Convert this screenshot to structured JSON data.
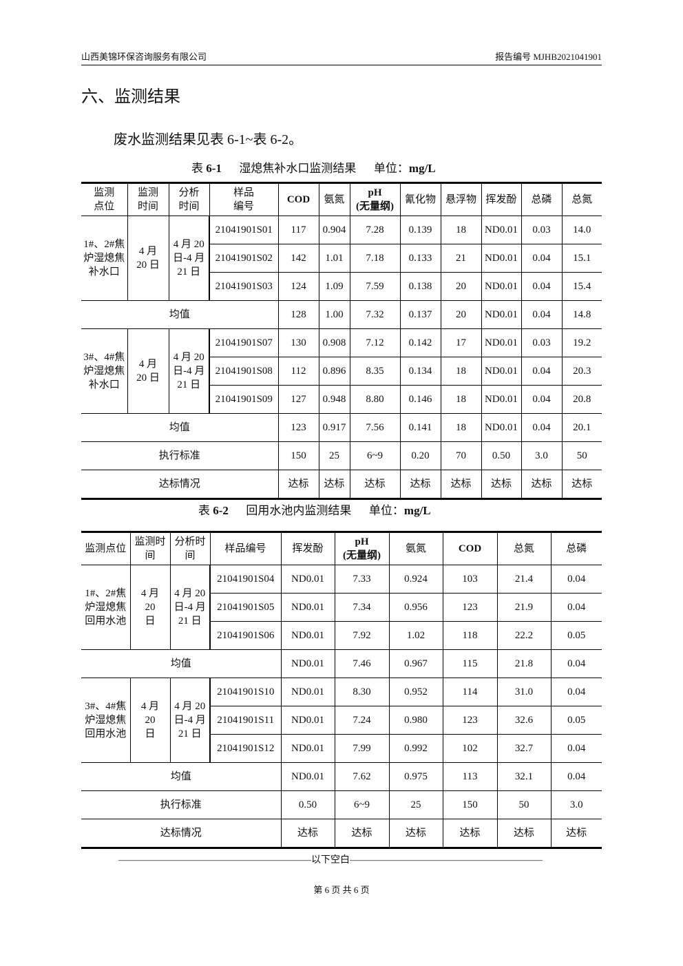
{
  "header": {
    "company": "山西美锦环保咨询服务有限公司",
    "report_no": "报告编号 MJHB2021041901"
  },
  "section_title": "六、监测结果",
  "intro": "废水监测结果见表 6-1~表 6-2。",
  "table1": {
    "caption_label": "表",
    "caption_num": "6-1",
    "caption_title": "湿熄焦补水口监测结果",
    "caption_unit": "单位：",
    "unit": "mg/L",
    "headers": [
      "监测\n点位",
      "监测\n时间",
      "分析\n时间",
      "样品\n编号",
      "COD",
      "氨氮",
      "pH\n(无量纲)",
      "氰化物",
      "悬浮物",
      "挥发酚",
      "总磷",
      "总氮"
    ],
    "groups": [
      {
        "site": "1#、2#焦炉湿熄焦补水口",
        "date": "4 月 20 日",
        "analysis": "4 月 20 日-4 月 21 日",
        "rows": [
          [
            "21041901S01",
            "117",
            "0.904",
            "7.28",
            "0.139",
            "18",
            "ND0.01",
            "0.03",
            "14.0"
          ],
          [
            "21041901S02",
            "142",
            "1.01",
            "7.18",
            "0.133",
            "21",
            "ND0.01",
            "0.04",
            "15.1"
          ],
          [
            "21041901S03",
            "124",
            "1.09",
            "7.59",
            "0.138",
            "20",
            "ND0.01",
            "0.04",
            "15.4"
          ]
        ],
        "mean_label": "均值",
        "mean": [
          "128",
          "1.00",
          "7.32",
          "0.137",
          "20",
          "ND0.01",
          "0.04",
          "14.8"
        ]
      },
      {
        "site": "3#、4#焦炉湿熄焦补水口",
        "date": "4 月 20 日",
        "analysis": "4 月 20 日-4 月 21 日",
        "rows": [
          [
            "21041901S07",
            "130",
            "0.908",
            "7.12",
            "0.142",
            "17",
            "ND0.01",
            "0.03",
            "19.2"
          ],
          [
            "21041901S08",
            "112",
            "0.896",
            "8.35",
            "0.134",
            "18",
            "ND0.01",
            "0.04",
            "20.3"
          ],
          [
            "21041901S09",
            "127",
            "0.948",
            "8.80",
            "0.146",
            "18",
            "ND0.01",
            "0.04",
            "20.8"
          ]
        ],
        "mean_label": "均值",
        "mean": [
          "123",
          "0.917",
          "7.56",
          "0.141",
          "18",
          "ND0.01",
          "0.04",
          "20.1"
        ]
      }
    ],
    "standard_label": "执行标准",
    "standard": [
      "150",
      "25",
      "6~9",
      "0.20",
      "70",
      "0.50",
      "3.0",
      "50"
    ],
    "compliance_label": "达标情况",
    "compliance": [
      "达标",
      "达标",
      "达标",
      "达标",
      "达标",
      "达标",
      "达标",
      "达标"
    ]
  },
  "table2": {
    "caption_label": "表",
    "caption_num": "6-2",
    "caption_title": "回用水池内监测结果",
    "caption_unit": "单位：",
    "unit": "mg/L",
    "headers": [
      "监测点位",
      "监测时\n间",
      "分析时\n间",
      "样品编号",
      "挥发酚",
      "pH\n(无量纲)",
      "氨氮",
      "COD",
      "总氮",
      "总磷"
    ],
    "groups": [
      {
        "site": "1#、2#焦炉湿熄焦回用水池",
        "date": "4 月 20 日",
        "analysis": "4 月 20 日-4 月 21 日",
        "rows": [
          [
            "21041901S04",
            "ND0.01",
            "7.33",
            "0.924",
            "103",
            "21.4",
            "0.04"
          ],
          [
            "21041901S05",
            "ND0.01",
            "7.34",
            "0.956",
            "123",
            "21.9",
            "0.04"
          ],
          [
            "21041901S06",
            "ND0.01",
            "7.92",
            "1.02",
            "118",
            "22.2",
            "0.05"
          ]
        ],
        "mean_label": "均值",
        "mean": [
          "ND0.01",
          "7.46",
          "0.967",
          "115",
          "21.8",
          "0.04"
        ]
      },
      {
        "site": "3#、4#焦炉湿熄焦回用水池",
        "date": "4 月 20 日",
        "analysis": "4 月 20 日-4 月 21 日",
        "rows": [
          [
            "21041901S10",
            "ND0.01",
            "8.30",
            "0.952",
            "114",
            "31.0",
            "0.04"
          ],
          [
            "21041901S11",
            "ND0.01",
            "7.24",
            "0.980",
            "123",
            "32.6",
            "0.05"
          ],
          [
            "21041901S12",
            "ND0.01",
            "7.99",
            "0.992",
            "102",
            "32.7",
            "0.04"
          ]
        ],
        "mean_label": "均值",
        "mean": [
          "ND0.01",
          "7.62",
          "0.975",
          "113",
          "32.1",
          "0.04"
        ]
      }
    ],
    "standard_label": "执行标准",
    "standard": [
      "0.50",
      "6~9",
      "25",
      "150",
      "50",
      "3.0"
    ],
    "compliance_label": "达标情况",
    "compliance": [
      "达标",
      "达标",
      "达标",
      "达标",
      "达标",
      "达标"
    ]
  },
  "end_note": "————————————————————以下空白————————————————————",
  "footer": "第 6 页  共 6 页"
}
